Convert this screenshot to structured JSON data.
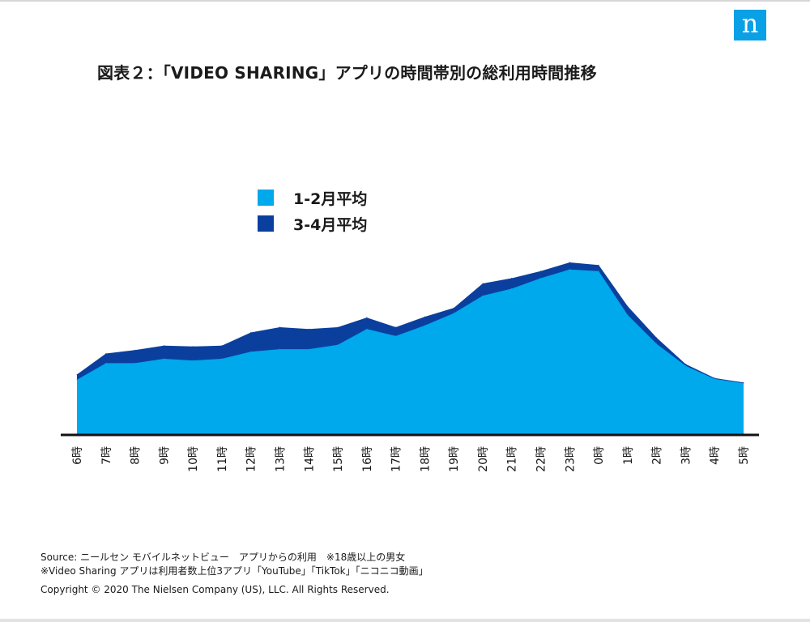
{
  "brand": {
    "logo_text": "n",
    "logo_color": "#0aa0e6"
  },
  "title": "図表２：「VIDEO SHARING」アプリの時間帯別の総利用時間推移",
  "footer": {
    "source": "Source: ニールセン モバイルネットビュー　アプリからの利用　※18歳以上の男女",
    "note": "※Video Sharing アプリは利用者数上位3アプリ「YouTube」「TikTok」「ニコニコ動画」",
    "copyright": "Copyright © 2020 The Nielsen Company (US), LLC. All Rights Reserved."
  },
  "chart_data": {
    "type": "area",
    "title": "",
    "xlabel": "",
    "ylabel": "",
    "y_axis_visible": false,
    "grid": false,
    "legend_position": "top-center",
    "categories": [
      "6時",
      "7時",
      "8時",
      "9時",
      "10時",
      "11時",
      "12時",
      "13時",
      "14時",
      "15時",
      "16時",
      "17時",
      "18時",
      "19時",
      "20時",
      "21時",
      "22時",
      "23時",
      "0時",
      "1時",
      "2時",
      "3時",
      "4時",
      "5時"
    ],
    "ylim": [
      0,
      100
    ],
    "series": [
      {
        "name": "3-4月平均",
        "color": "#0b3f9e",
        "values": [
          34,
          46,
          48,
          50.5,
          50,
          50.5,
          58,
          61,
          60,
          61,
          66.5,
          61,
          67,
          72,
          86,
          89,
          93,
          98,
          96.5,
          73,
          55,
          40,
          32,
          29.5
        ]
      },
      {
        "name": "1-2月平均",
        "color": "#00a8ec",
        "values": [
          31,
          40.5,
          40.5,
          43,
          42,
          43,
          47,
          48.5,
          48.5,
          51,
          60,
          56,
          62,
          69,
          79,
          83,
          89,
          94,
          93,
          68,
          51.5,
          39,
          31.5,
          29
        ]
      }
    ]
  }
}
